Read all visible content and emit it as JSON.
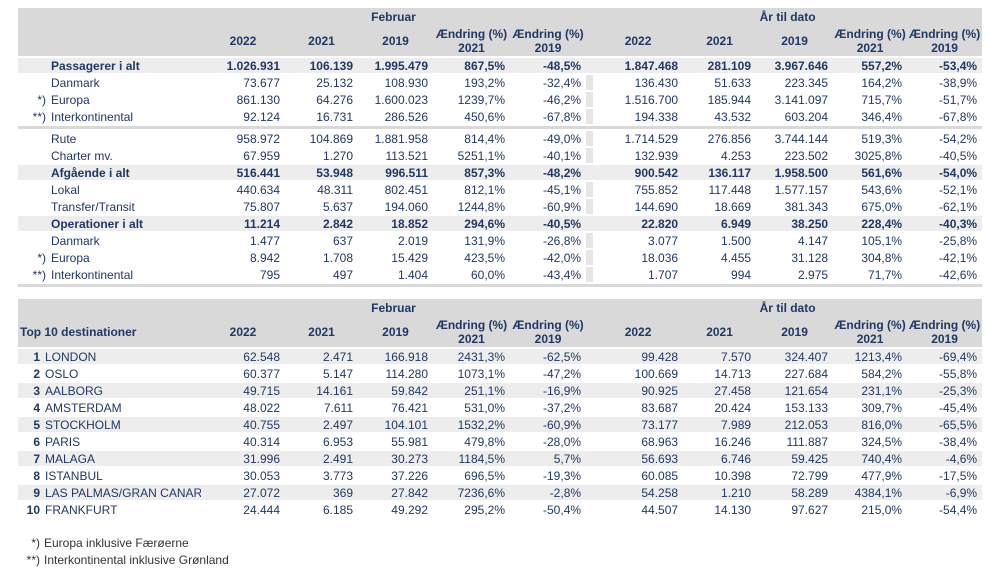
{
  "report": {
    "tables": [
      {
        "name": "traffic-summary",
        "period_feb": "Februar",
        "period_ytd": "År til dato",
        "label_header": "",
        "year_cols": [
          "2022",
          "2021",
          "2019"
        ],
        "change_col": "Ændring (%)",
        "change_years": [
          "2021",
          "2019"
        ],
        "rows": [
          {
            "type": "total",
            "prefix": "",
            "label": "Passagerer i alt",
            "values": [
              "1.026.931",
              "106.139",
              "1.995.479",
              "867,5%",
              "-48,5%",
              "1.847.468",
              "281.109",
              "3.967.646",
              "557,2%",
              "-53,4%"
            ]
          },
          {
            "type": "sub",
            "prefix": "",
            "label": "Danmark",
            "values": [
              "73.677",
              "25.132",
              "108.930",
              "193,2%",
              "-32,4%",
              "136.430",
              "51.633",
              "223.345",
              "164,2%",
              "-38,9%"
            ]
          },
          {
            "type": "sub",
            "prefix": "*)",
            "label": "Europa",
            "values": [
              "861.130",
              "64.276",
              "1.600.023",
              "1239,7%",
              "-46,2%",
              "1.516.700",
              "185.944",
              "3.141.097",
              "715,7%",
              "-51,7%"
            ]
          },
          {
            "type": "sub",
            "prefix": "**)",
            "label": "Interkontinental",
            "values": [
              "92.124",
              "16.731",
              "286.526",
              "450,6%",
              "-67,8%",
              "194.338",
              "43.532",
              "603.204",
              "346,4%",
              "-67,8%"
            ]
          },
          {
            "type": "sep"
          },
          {
            "type": "sub",
            "prefix": "",
            "label": "Rute",
            "values": [
              "958.972",
              "104.869",
              "1.881.958",
              "814,4%",
              "-49,0%",
              "1.714.529",
              "276.856",
              "3.744.144",
              "519,3%",
              "-54,2%"
            ]
          },
          {
            "type": "sub",
            "prefix": "",
            "label": "Charter mv.",
            "values": [
              "67.959",
              "1.270",
              "113.521",
              "5251,1%",
              "-40,1%",
              "132.939",
              "4.253",
              "223.502",
              "3025,8%",
              "-40,5%"
            ]
          },
          {
            "type": "total",
            "prefix": "",
            "label": "Afgående i alt",
            "values": [
              "516.441",
              "53.948",
              "996.511",
              "857,3%",
              "-48,2%",
              "900.542",
              "136.117",
              "1.958.500",
              "561,6%",
              "-54,0%"
            ]
          },
          {
            "type": "sub",
            "prefix": "",
            "label": "Lokal",
            "values": [
              "440.634",
              "48.311",
              "802.451",
              "812,1%",
              "-45,1%",
              "755.852",
              "117.448",
              "1.577.157",
              "543,6%",
              "-52,1%"
            ]
          },
          {
            "type": "sub",
            "prefix": "",
            "label": "Transfer/Transit",
            "values": [
              "75.807",
              "5.637",
              "194.060",
              "1244,8%",
              "-60,9%",
              "144.690",
              "18.669",
              "381.343",
              "675,0%",
              "-62,1%"
            ]
          },
          {
            "type": "total",
            "prefix": "",
            "label": "Operationer i alt",
            "values": [
              "11.214",
              "2.842",
              "18.852",
              "294,6%",
              "-40,5%",
              "22.820",
              "6.949",
              "38.250",
              "228,4%",
              "-40,3%"
            ]
          },
          {
            "type": "sub",
            "prefix": "",
            "label": "Danmark",
            "values": [
              "1.477",
              "637",
              "2.019",
              "131,9%",
              "-26,8%",
              "3.077",
              "1.500",
              "4.147",
              "105,1%",
              "-25,8%"
            ]
          },
          {
            "type": "sub",
            "prefix": "*)",
            "label": "Europa",
            "values": [
              "8.942",
              "1.708",
              "15.429",
              "423,5%",
              "-42,0%",
              "18.036",
              "4.455",
              "31.128",
              "304,8%",
              "-42,1%"
            ]
          },
          {
            "type": "sub",
            "prefix": "**)",
            "label": "Interkontinental",
            "values": [
              "795",
              "497",
              "1.404",
              "60,0%",
              "-43,4%",
              "1.707",
              "994",
              "2.975",
              "71,7%",
              "-42,6%"
            ]
          },
          {
            "type": "sep"
          }
        ]
      },
      {
        "name": "top10-destinations",
        "period_feb": "Februar",
        "period_ytd": "År til dato",
        "label_header": "Top 10 destinationer",
        "year_cols": [
          "2022",
          "2021",
          "2019"
        ],
        "change_col": "Ændring (%)",
        "change_years": [
          "2021",
          "2019"
        ],
        "rows": [
          {
            "type": "sub",
            "rank": "1",
            "label": "LONDON",
            "zebra": true,
            "values": [
              "62.548",
              "2.471",
              "166.918",
              "2431,3%",
              "-62,5%",
              "99.428",
              "7.570",
              "324.407",
              "1213,4%",
              "-69,4%"
            ]
          },
          {
            "type": "sub",
            "rank": "2",
            "label": "OSLO",
            "zebra": false,
            "values": [
              "60.377",
              "5.147",
              "114.280",
              "1073,1%",
              "-47,2%",
              "100.669",
              "14.713",
              "227.684",
              "584,2%",
              "-55,8%"
            ]
          },
          {
            "type": "sub",
            "rank": "3",
            "label": "AALBORG",
            "zebra": true,
            "values": [
              "49.715",
              "14.161",
              "59.842",
              "251,1%",
              "-16,9%",
              "90.925",
              "27.458",
              "121.654",
              "231,1%",
              "-25,3%"
            ]
          },
          {
            "type": "sub",
            "rank": "4",
            "label": "AMSTERDAM",
            "zebra": false,
            "values": [
              "48.022",
              "7.611",
              "76.421",
              "531,0%",
              "-37,2%",
              "83.687",
              "20.424",
              "153.133",
              "309,7%",
              "-45,4%"
            ]
          },
          {
            "type": "sub",
            "rank": "5",
            "label": "STOCKHOLM",
            "zebra": true,
            "values": [
              "40.755",
              "2.497",
              "104.101",
              "1532,2%",
              "-60,9%",
              "73.177",
              "7.989",
              "212.053",
              "816,0%",
              "-65,5%"
            ]
          },
          {
            "type": "sub",
            "rank": "6",
            "label": "PARIS",
            "zebra": false,
            "values": [
              "40.314",
              "6.953",
              "55.981",
              "479,8%",
              "-28,0%",
              "68.963",
              "16.246",
              "111.887",
              "324,5%",
              "-38,4%"
            ]
          },
          {
            "type": "sub",
            "rank": "7",
            "label": "MALAGA",
            "zebra": true,
            "values": [
              "31.996",
              "2.491",
              "30.273",
              "1184,5%",
              "5,7%",
              "56.693",
              "6.746",
              "59.425",
              "740,4%",
              "-4,6%"
            ]
          },
          {
            "type": "sub",
            "rank": "8",
            "label": "ISTANBUL",
            "zebra": false,
            "values": [
              "30.053",
              "3.773",
              "37.226",
              "696,5%",
              "-19,3%",
              "60.085",
              "10.398",
              "72.799",
              "477,9%",
              "-17,5%"
            ]
          },
          {
            "type": "sub",
            "rank": "9",
            "label": "LAS PALMAS/GRAN CANARIA",
            "zebra": true,
            "values": [
              "27.072",
              "369",
              "27.842",
              "7236,6%",
              "-2,8%",
              "54.258",
              "1.210",
              "58.289",
              "4384,1%",
              "-6,9%"
            ]
          },
          {
            "type": "sub",
            "rank": "10",
            "label": "FRANKFURT",
            "zebra": false,
            "values": [
              "24.444",
              "6.185",
              "49.292",
              "295,2%",
              "-50,4%",
              "44.507",
              "14.130",
              "97.627",
              "215,0%",
              "-54,4%"
            ]
          }
        ]
      }
    ],
    "footnotes": [
      {
        "prefix": "*)",
        "text": "Europa inklusive Færøerne"
      },
      {
        "prefix": "**)",
        "text": "Interkontinental inklusive Grønland"
      }
    ],
    "colors": {
      "header_bg": "#D9D9D9",
      "total_row_bg": "#EDEDED",
      "zebra_bg": "#EDEDED",
      "text_navy": "#1F3864",
      "footnote_text": "#333333"
    }
  }
}
